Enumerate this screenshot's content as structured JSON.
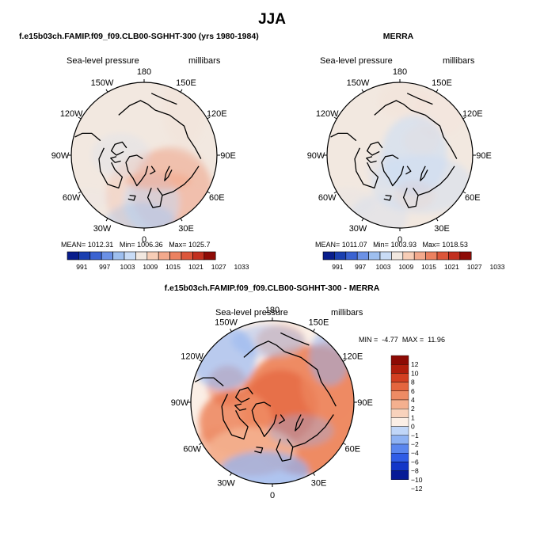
{
  "page_title": "JJA",
  "colors": {
    "pressure_scale": [
      "#081d8c",
      "#1a3fb0",
      "#3b63d1",
      "#6b91e6",
      "#9ebfef",
      "#c9dcf6",
      "#f2e8e0",
      "#f7cdb6",
      "#f3a98c",
      "#eb8160",
      "#dc563a",
      "#c2301f",
      "#8e0b06"
    ],
    "diff_scale": [
      "#061a96",
      "#1236c8",
      "#2f5ce6",
      "#5a86ee",
      "#8eb2f3",
      "#c0d6f8",
      "#fbefe6",
      "#f8d2bc",
      "#f4b08f",
      "#ee8b64",
      "#e4653e",
      "#d33f21",
      "#b01d0c",
      "#8d0a04"
    ],
    "land_outline": "#000000"
  },
  "chart_data": [
    {
      "type": "heatmap",
      "projection": "north-polar-stereographic",
      "title": "f.e15b03ch.FAMIP.f09_f09.CLB00-SGHHT-300 (yrs 1980-1984)",
      "field_label": "Sea-level pressure",
      "units": "millibars",
      "lon_labels": [
        "180",
        "150E",
        "120E",
        "90E",
        "60E",
        "30E",
        "0",
        "30W",
        "60W",
        "90W",
        "120W",
        "150W"
      ],
      "stats": {
        "mean": 1012.31,
        "min": 1006.36,
        "max": 1025.7
      },
      "stats_labels": {
        "mean": "MEAN=",
        "min": "Min=",
        "max": "Max="
      },
      "colorbar_levels": [
        991,
        997,
        1003,
        1009,
        1015,
        1021,
        1027,
        1033
      ]
    },
    {
      "type": "heatmap",
      "projection": "north-polar-stereographic",
      "title": "MERRA",
      "field_label": "Sea-level pressure",
      "units": "millibars",
      "lon_labels": [
        "180",
        "150E",
        "120E",
        "90E",
        "60E",
        "30E",
        "0",
        "30W",
        "60W",
        "90W",
        "120W",
        "150W"
      ],
      "stats": {
        "mean": 1011.07,
        "min": 1003.93,
        "max": 1018.53
      },
      "stats_labels": {
        "mean": "MEAN=",
        "min": "Min=",
        "max": "Max="
      },
      "colorbar_levels": [
        991,
        997,
        1003,
        1009,
        1015,
        1021,
        1027,
        1033
      ]
    },
    {
      "type": "heatmap",
      "projection": "north-polar-stereographic",
      "title": "f.e15b03ch.FAMIP.f09_f09.CLB00-SGHHT-300 - MERRA",
      "field_label": "Sea-level pressure",
      "units": "millibars",
      "lon_labels": [
        "180",
        "150E",
        "120E",
        "90E",
        "60E",
        "30E",
        "0",
        "30W",
        "60W",
        "90W",
        "120W",
        "150W"
      ],
      "stats": {
        "min": -4.77,
        "max": 11.96
      },
      "stats_labels": {
        "min": "MIN =",
        "max": "MAX ="
      },
      "colorbar_levels": [
        12,
        10,
        8,
        6,
        4,
        2,
        1,
        0,
        -1,
        -2,
        -4,
        -6,
        -8,
        -10,
        -12
      ]
    }
  ]
}
